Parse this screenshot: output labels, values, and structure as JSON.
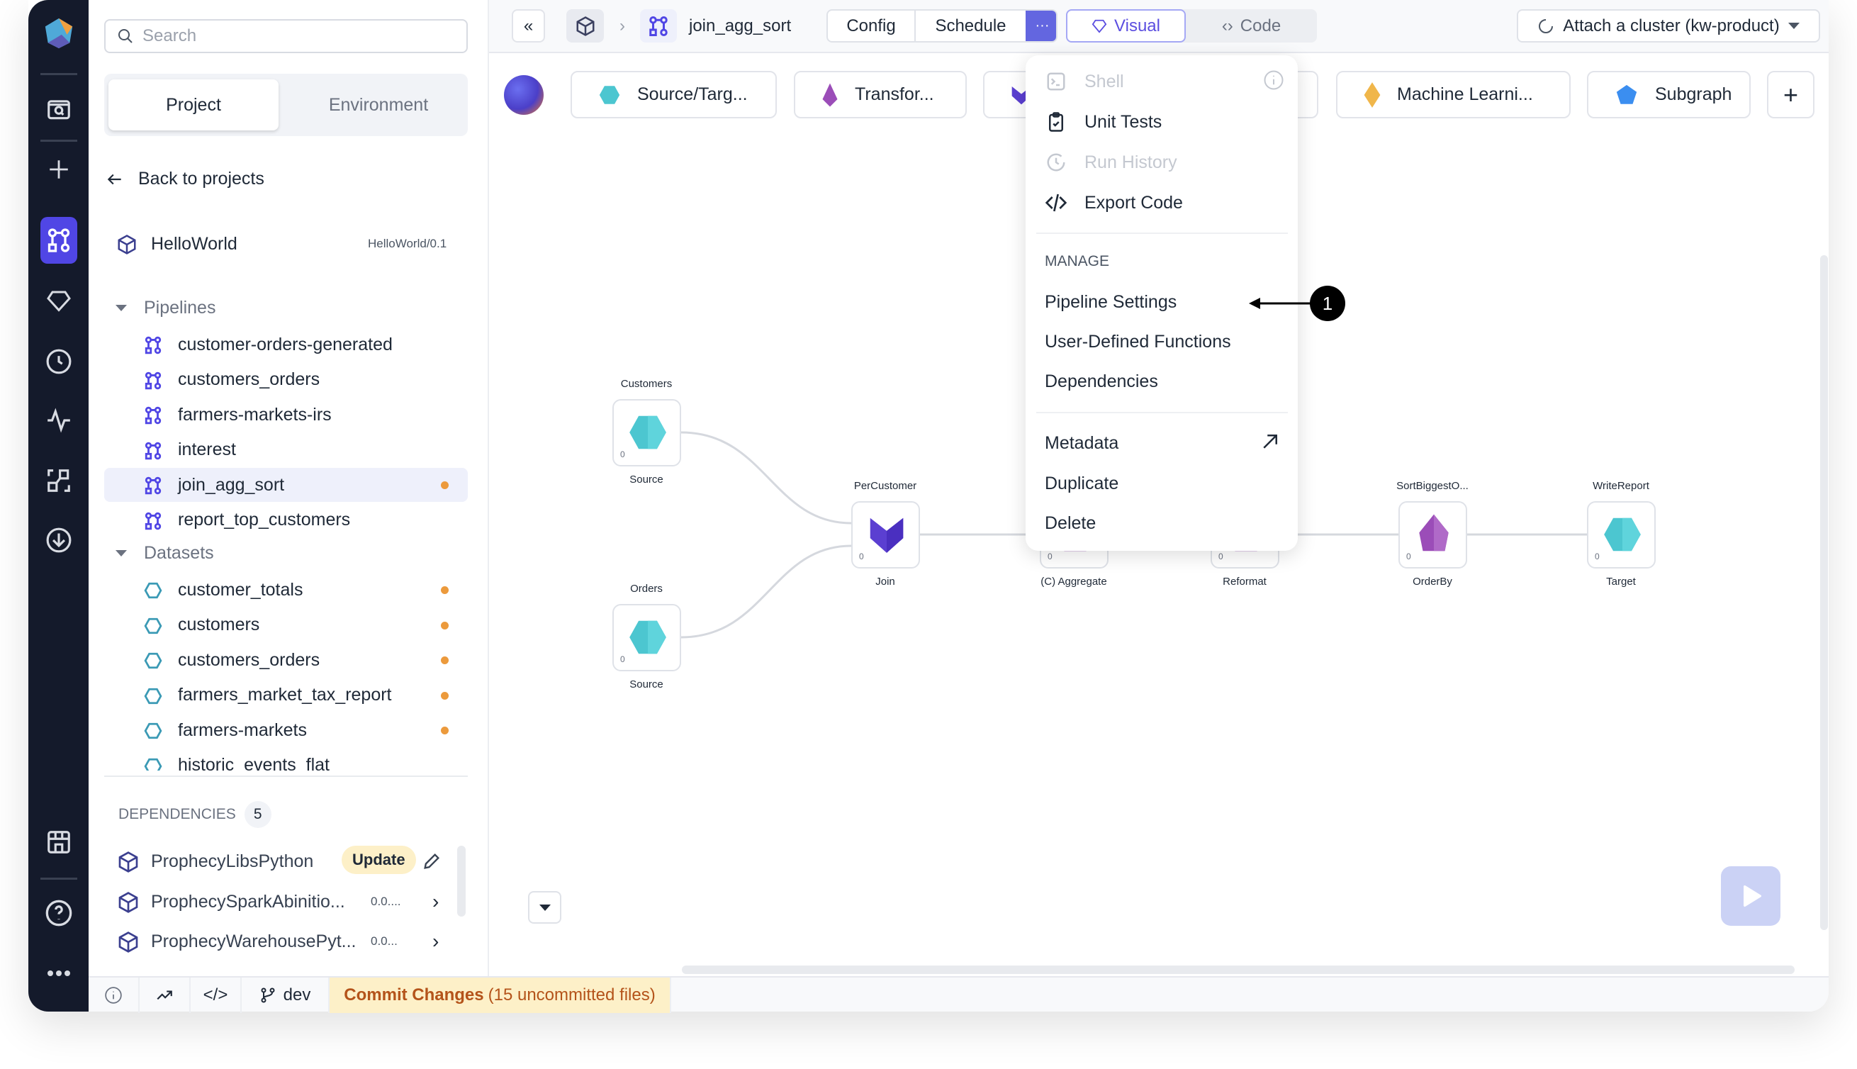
{
  "rail": {
    "items": [
      "logo",
      "search-folder",
      "plus",
      "pipeline",
      "gem",
      "clock",
      "pulse",
      "graph",
      "download",
      "store",
      "help",
      "more"
    ],
    "active": "pipeline",
    "accent": "#5046e5"
  },
  "sidebar": {
    "search_placeholder": "Search",
    "tabs": [
      "Project",
      "Environment"
    ],
    "active_tab": "Project",
    "back_label": "Back to projects",
    "project": {
      "name": "HelloWorld",
      "version": "HelloWorld/0.1"
    },
    "pipelines": {
      "title": "Pipelines",
      "items": [
        {
          "name": "customer-orders-generated",
          "modified": false
        },
        {
          "name": "customers_orders",
          "modified": false
        },
        {
          "name": "farmers-markets-irs",
          "modified": false
        },
        {
          "name": "interest",
          "modified": false
        },
        {
          "name": "join_agg_sort",
          "modified": true,
          "selected": true
        },
        {
          "name": "report_top_customers",
          "modified": false
        }
      ]
    },
    "datasets": {
      "title": "Datasets",
      "items": [
        {
          "name": "customer_totals",
          "modified": true
        },
        {
          "name": "customers",
          "modified": true
        },
        {
          "name": "customers_orders",
          "modified": true
        },
        {
          "name": "farmers_market_tax_report",
          "modified": true
        },
        {
          "name": "farmers-markets",
          "modified": true
        },
        {
          "name": "historic_events_flat",
          "modified": false
        }
      ]
    },
    "dependencies": {
      "title": "DEPENDENCIES",
      "count": "5",
      "items": [
        {
          "name": "ProphecyLibsPython",
          "badge": "Update"
        },
        {
          "name": "ProphecySparkAbinitio...",
          "version": "0.0...."
        },
        {
          "name": "ProphecyWarehousePyt...",
          "version": "0.0..."
        }
      ]
    }
  },
  "topbar": {
    "pipeline_name": "join_agg_sort",
    "config_label": "Config",
    "schedule_label": "Schedule",
    "visual_label": "Visual",
    "code_label": "Code",
    "cluster_label": "Attach a cluster (kw-product)"
  },
  "gems": [
    {
      "label": "Source/Targ...",
      "color": "#4cc6d0"
    },
    {
      "label": "Transfor...",
      "color": "#9b4db8"
    },
    {
      "label": "",
      "color": "#5b3fd1"
    },
    {
      "label": "Machine Learni...",
      "color": "#f0b64a"
    },
    {
      "label": "Subgraph",
      "color": "#3b8ef0"
    }
  ],
  "menu": {
    "items": [
      {
        "label": "Shell",
        "icon": "terminal",
        "disabled": true
      },
      {
        "label": "Unit Tests",
        "icon": "clipboard-check"
      },
      {
        "label": "Run History",
        "icon": "history",
        "disabled": true
      },
      {
        "label": "Export Code",
        "icon": "code"
      }
    ],
    "manage_title": "MANAGE",
    "manage_items": [
      "Pipeline Settings",
      "User-Defined Functions",
      "Dependencies"
    ],
    "other_items": [
      "Metadata",
      "Duplicate",
      "Delete"
    ],
    "annotation": "1"
  },
  "canvas": {
    "nodes": [
      {
        "title": "Customers",
        "label": "Source",
        "type": "source",
        "count": "0"
      },
      {
        "title": "Orders",
        "label": "Source",
        "type": "source",
        "count": "0"
      },
      {
        "title": "PerCustomer",
        "label": "Join",
        "type": "join",
        "count": "0"
      },
      {
        "label": "(C) Aggregate",
        "type": "transform",
        "count": "0"
      },
      {
        "label": "Reformat",
        "type": "transform",
        "count": "0"
      },
      {
        "title": "SortBiggestO...",
        "label": "OrderBy",
        "type": "orderby",
        "count": "0"
      },
      {
        "title": "WriteReport",
        "label": "Target",
        "type": "source",
        "count": "0"
      }
    ]
  },
  "status": {
    "branch": "dev",
    "commit_label": "Commit Changes",
    "commit_detail": "(15 uncommitted files)"
  }
}
